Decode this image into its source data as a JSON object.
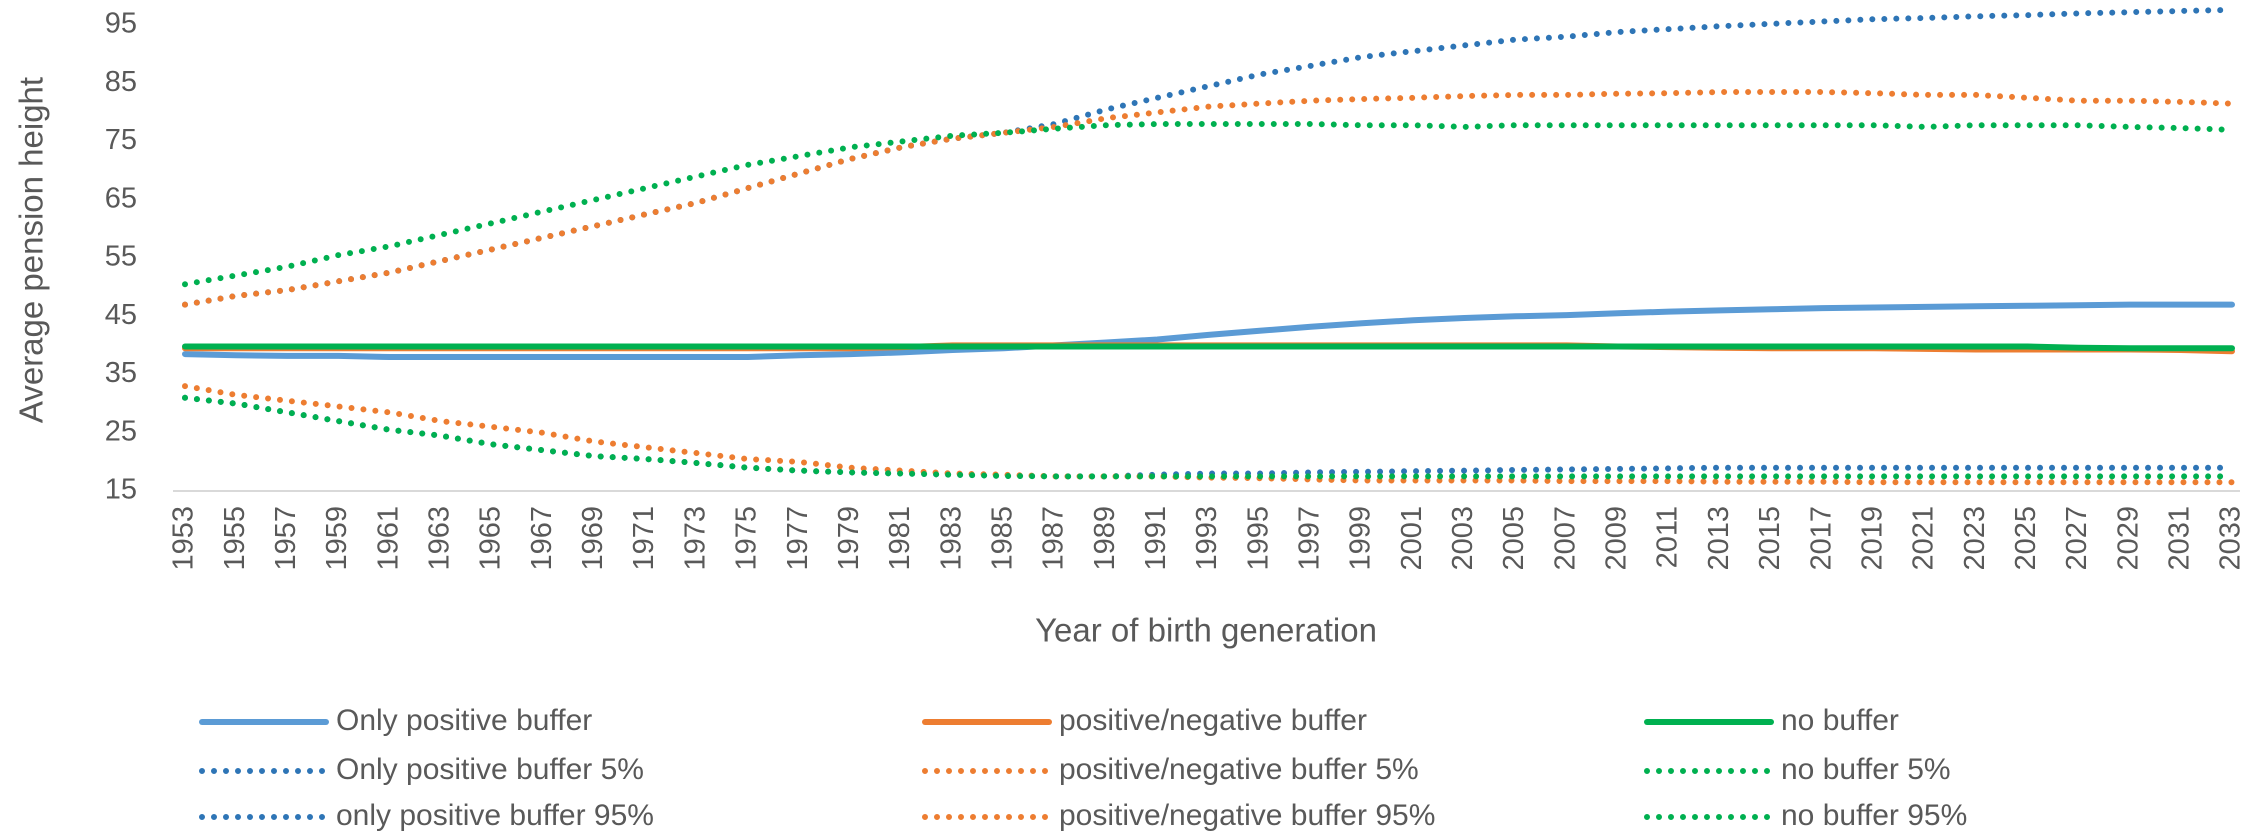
{
  "chart_data": {
    "type": "line",
    "y_label": "Average pension height",
    "x_label": "Year of birth generation",
    "categories": [
      1953,
      1955,
      1957,
      1959,
      1961,
      1963,
      1965,
      1967,
      1969,
      1971,
      1973,
      1975,
      1977,
      1979,
      1981,
      1983,
      1985,
      1987,
      1989,
      1991,
      1993,
      1995,
      1997,
      1999,
      2001,
      2003,
      2005,
      2007,
      2009,
      2011,
      2013,
      2015,
      2017,
      2019,
      2021,
      2023,
      2025,
      2027,
      2029,
      2031,
      2033
    ],
    "ylim": [
      15,
      95
    ],
    "yticks": [
      15,
      25,
      35,
      45,
      55,
      65,
      75,
      85,
      95
    ],
    "grid": false,
    "legend": "bottom",
    "series": [
      {
        "name": "Only positive buffer",
        "color": "#5b9bd5",
        "dash": "solid",
        "values": [
          38.5,
          38.3,
          38.2,
          38.2,
          38,
          38,
          38,
          38,
          38,
          38,
          38,
          38,
          38.3,
          38.5,
          38.8,
          39.2,
          39.5,
          40,
          40.5,
          41,
          41.8,
          42.5,
          43.2,
          43.8,
          44.3,
          44.7,
          45,
          45.2,
          45.5,
          45.8,
          46,
          46.2,
          46.4,
          46.5,
          46.6,
          46.7,
          46.8,
          46.9,
          47,
          47,
          47
        ]
      },
      {
        "name": "positive/negative buffer",
        "color": "#ed7d31",
        "dash": "solid",
        "values": [
          39.5,
          39.5,
          39.5,
          39.5,
          39.5,
          39.5,
          39.5,
          39.5,
          39.5,
          39.5,
          39.5,
          39.5,
          39.5,
          39.5,
          39.7,
          40,
          40,
          40,
          40,
          40,
          40,
          40,
          40,
          40,
          40,
          40,
          40,
          40,
          39.8,
          39.7,
          39.6,
          39.5,
          39.5,
          39.5,
          39.4,
          39.3,
          39.3,
          39.3,
          39.3,
          39.2,
          39
        ]
      },
      {
        "name": "no buffer",
        "color": "#00b050",
        "dash": "solid",
        "values": [
          39.8,
          39.8,
          39.8,
          39.8,
          39.8,
          39.8,
          39.8,
          39.8,
          39.8,
          39.8,
          39.8,
          39.8,
          39.8,
          39.8,
          39.8,
          39.8,
          39.8,
          39.8,
          39.8,
          39.8,
          39.8,
          39.8,
          39.8,
          39.8,
          39.8,
          39.8,
          39.8,
          39.8,
          39.8,
          39.8,
          39.8,
          39.8,
          39.8,
          39.8,
          39.8,
          39.8,
          39.8,
          39.6,
          39.5,
          39.5,
          39.5
        ]
      },
      {
        "name": "Only positive buffer 5%",
        "color": "#2e75b6",
        "dash": "dotted",
        "values": [
          31,
          30,
          28.5,
          27,
          25.5,
          24.5,
          23,
          22,
          21,
          20.5,
          19.8,
          19,
          18.5,
          18.2,
          18,
          17.8,
          17.6,
          17.5,
          17.5,
          17.8,
          18,
          18,
          18.2,
          18.3,
          18.4,
          18.5,
          18.6,
          18.7,
          18.8,
          18.9,
          19,
          19,
          19,
          19,
          19,
          19,
          19,
          19,
          19,
          19,
          19
        ]
      },
      {
        "name": "positive/negative buffer 5%",
        "color": "#ed7d31",
        "dash": "dotted",
        "values": [
          33,
          31.5,
          30.5,
          29.5,
          28.5,
          27,
          26,
          25,
          23.5,
          22.5,
          21.5,
          20.5,
          20,
          19,
          18.5,
          18,
          17.8,
          17.5,
          17.5,
          17.5,
          17.3,
          17.2,
          17,
          16.8,
          16.8,
          16.8,
          16.8,
          16.7,
          16.7,
          16.7,
          16.6,
          16.6,
          16.6,
          16.5,
          16.5,
          16.5,
          16.5,
          16.5,
          16.5,
          16.5,
          16.5
        ]
      },
      {
        "name": "no buffer 5%",
        "color": "#00b050",
        "dash": "dotted",
        "values": [
          31,
          30,
          28.5,
          27,
          25.5,
          24.5,
          23,
          22,
          21,
          20.5,
          19.8,
          19,
          18.5,
          18.2,
          18,
          17.8,
          17.6,
          17.5,
          17.5,
          17.5,
          17.5,
          17.5,
          17.5,
          17.5,
          17.5,
          17.5,
          17.5,
          17.5,
          17.5,
          17.5,
          17.5,
          17.5,
          17.5,
          17.5,
          17.5,
          17.5,
          17.5,
          17.5,
          17.5,
          17.5,
          17.5
        ]
      },
      {
        "name": "only positive buffer 95%",
        "color": "#2e75b6",
        "dash": "dotted",
        "values": [
          47,
          48.5,
          49.5,
          51,
          52.5,
          54.5,
          56.5,
          58.5,
          60.5,
          62.5,
          64.5,
          67,
          69.5,
          72,
          74,
          75.5,
          76.5,
          78,
          80.5,
          82.5,
          84.5,
          86.5,
          88,
          89.5,
          90.5,
          91.5,
          92.5,
          93,
          93.8,
          94.3,
          94.8,
          95.2,
          95.6,
          96,
          96.2,
          96.5,
          96.7,
          97,
          97.2,
          97.4,
          97.6
        ]
      },
      {
        "name": "positive/negative buffer 95%",
        "color": "#ed7d31",
        "dash": "dotted",
        "values": [
          47,
          48.5,
          49.5,
          51,
          52.5,
          54.5,
          56.5,
          58.5,
          60.5,
          62.5,
          64.5,
          67,
          69.5,
          72,
          74,
          75.5,
          76.5,
          77.5,
          79,
          80,
          81,
          81.5,
          82,
          82.3,
          82.5,
          82.8,
          83,
          83,
          83.2,
          83.3,
          83.5,
          83.5,
          83.5,
          83.3,
          83,
          83,
          82.5,
          82,
          82,
          81.8,
          81.5
        ]
      },
      {
        "name": "no buffer 95%",
        "color": "#00b050",
        "dash": "dotted",
        "values": [
          50.5,
          52,
          53.5,
          55.5,
          57,
          59,
          61,
          63,
          65,
          67,
          69,
          71,
          72.5,
          74,
          75,
          76,
          76.5,
          77.2,
          77.8,
          78,
          78,
          78,
          78,
          77.8,
          77.8,
          77.5,
          77.8,
          77.8,
          77.8,
          77.8,
          77.8,
          77.8,
          77.8,
          77.8,
          77.5,
          77.8,
          77.8,
          77.8,
          77.5,
          77.3,
          77
        ]
      }
    ]
  }
}
